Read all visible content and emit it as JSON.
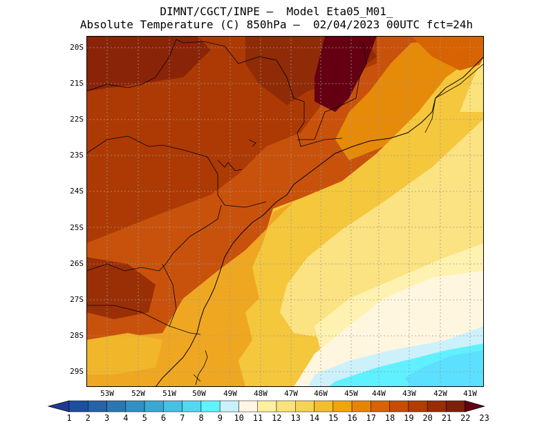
{
  "header": {
    "line1": "DIMNT/CGCT/INPE –  Model Eta05_M01_",
    "line2": "Absolute Temperature (C) 850hPa –  02/04/2023 00UTC fct=24h"
  },
  "map": {
    "lat_labels": [
      "20S",
      "21S",
      "22S",
      "23S",
      "24S",
      "25S",
      "26S",
      "27S",
      "28S",
      "29S"
    ],
    "lon_labels": [
      "53W",
      "52W",
      "51W",
      "50W",
      "49W",
      "48W",
      "47W",
      "46W",
      "45W",
      "44W",
      "43W",
      "42W",
      "41W"
    ]
  },
  "colorbar": {
    "labels": [
      "1",
      "2",
      "3",
      "4",
      "5",
      "6",
      "7",
      "8",
      "9",
      "10",
      "11",
      "12",
      "13",
      "14",
      "15",
      "16",
      "17",
      "18",
      "19",
      "20",
      "21",
      "22",
      "23"
    ],
    "colors": [
      "#1f3a93",
      "#1d4f9e",
      "#2563a8",
      "#2a77b3",
      "#3190c4",
      "#3aa8d4",
      "#48c0e3",
      "#55d7f0",
      "#5ff3ff",
      "#c8f1fb",
      "#fff7e3",
      "#fff0a0",
      "#fbe27a",
      "#f6d255",
      "#f2bd2e",
      "#f0a40e",
      "#e88405",
      "#d86302",
      "#c64e01",
      "#b23c02",
      "#992c04",
      "#7d1f0a",
      "#650013"
    ]
  }
}
